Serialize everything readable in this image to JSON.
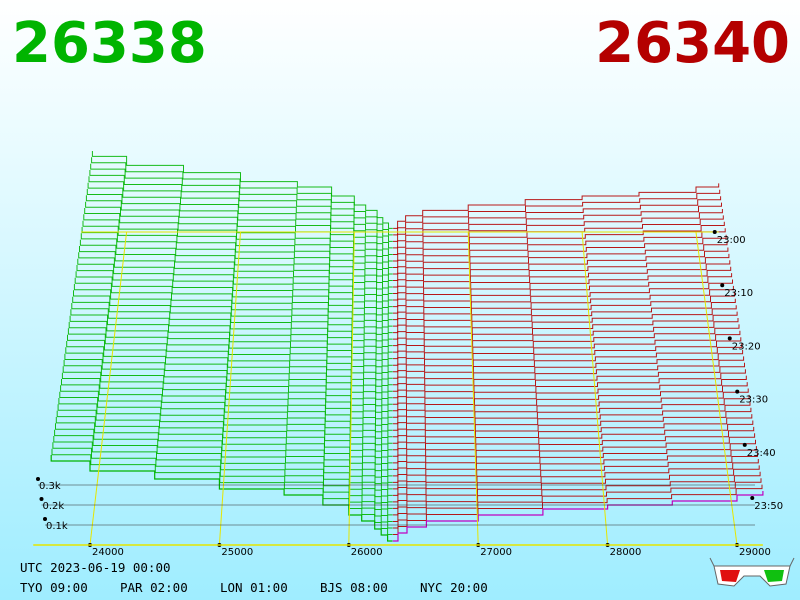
{
  "chart_data": {
    "type": "depth3d",
    "bid_price": 26338,
    "ask_price": 26340,
    "bid_color": "#00b400",
    "ask_color": "#b40000",
    "front_ask_color": "#c000c0",
    "grid_color": "#e6e600",
    "xlim": [
      23600,
      29200
    ],
    "xticks": [
      24000,
      25000,
      26000,
      27000,
      28000,
      29000
    ],
    "depth_ticks": [
      {
        "value": 0.1,
        "label": "0.1k"
      },
      {
        "value": 0.2,
        "label": "0.2k"
      },
      {
        "value": 0.3,
        "label": "0.3k"
      }
    ],
    "time_ticks": [
      "23:00",
      "23:10",
      "23:20",
      "23:30",
      "23:40",
      "23:50"
    ],
    "bids": {
      "x": [
        26338,
        26300,
        26250,
        26200,
        26100,
        26000,
        25800,
        25500,
        25000,
        24500,
        24000,
        23700
      ],
      "values": [
        0.02,
        0.05,
        0.08,
        0.12,
        0.15,
        0.2,
        0.25,
        0.28,
        0.33,
        0.37,
        0.42,
        0.45
      ]
    },
    "asks": {
      "x": [
        26340,
        26380,
        26450,
        26600,
        27000,
        27500,
        28000,
        28500,
        29000,
        29200
      ],
      "values": [
        0.02,
        0.06,
        0.09,
        0.12,
        0.15,
        0.18,
        0.2,
        0.22,
        0.25,
        0.27
      ]
    },
    "footer": {
      "utc": "UTC 2023-06-19 00:00",
      "zones": [
        "TYO 09:00",
        "PAR 02:00",
        "LON 01:00",
        "BJS 08:00",
        "NYC 20:00"
      ]
    }
  }
}
